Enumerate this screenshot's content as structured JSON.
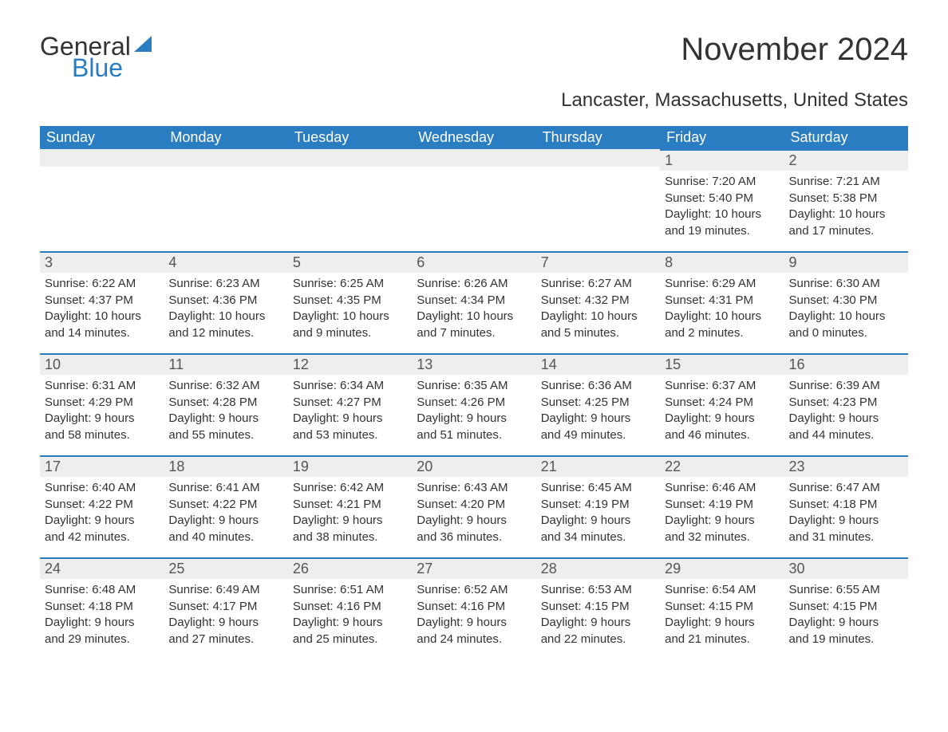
{
  "logo": {
    "text1": "General",
    "text2": "Blue",
    "sail_color": "#2a7dc0"
  },
  "title": "November 2024",
  "subtitle": "Lancaster, Massachusetts, United States",
  "colors": {
    "header_bg": "#2a7dc0",
    "header_fg": "#ffffff",
    "day_border_top": "#2a7dc0",
    "daynum_bg": "#eeeeee",
    "text": "#333333"
  },
  "weekdays": [
    "Sunday",
    "Monday",
    "Tuesday",
    "Wednesday",
    "Thursday",
    "Friday",
    "Saturday"
  ],
  "weeks": [
    [
      null,
      null,
      null,
      null,
      null,
      {
        "n": "1",
        "sunrise": "Sunrise: 7:20 AM",
        "sunset": "Sunset: 5:40 PM",
        "dl1": "Daylight: 10 hours",
        "dl2": "and 19 minutes."
      },
      {
        "n": "2",
        "sunrise": "Sunrise: 7:21 AM",
        "sunset": "Sunset: 5:38 PM",
        "dl1": "Daylight: 10 hours",
        "dl2": "and 17 minutes."
      }
    ],
    [
      {
        "n": "3",
        "sunrise": "Sunrise: 6:22 AM",
        "sunset": "Sunset: 4:37 PM",
        "dl1": "Daylight: 10 hours",
        "dl2": "and 14 minutes."
      },
      {
        "n": "4",
        "sunrise": "Sunrise: 6:23 AM",
        "sunset": "Sunset: 4:36 PM",
        "dl1": "Daylight: 10 hours",
        "dl2": "and 12 minutes."
      },
      {
        "n": "5",
        "sunrise": "Sunrise: 6:25 AM",
        "sunset": "Sunset: 4:35 PM",
        "dl1": "Daylight: 10 hours",
        "dl2": "and 9 minutes."
      },
      {
        "n": "6",
        "sunrise": "Sunrise: 6:26 AM",
        "sunset": "Sunset: 4:34 PM",
        "dl1": "Daylight: 10 hours",
        "dl2": "and 7 minutes."
      },
      {
        "n": "7",
        "sunrise": "Sunrise: 6:27 AM",
        "sunset": "Sunset: 4:32 PM",
        "dl1": "Daylight: 10 hours",
        "dl2": "and 5 minutes."
      },
      {
        "n": "8",
        "sunrise": "Sunrise: 6:29 AM",
        "sunset": "Sunset: 4:31 PM",
        "dl1": "Daylight: 10 hours",
        "dl2": "and 2 minutes."
      },
      {
        "n": "9",
        "sunrise": "Sunrise: 6:30 AM",
        "sunset": "Sunset: 4:30 PM",
        "dl1": "Daylight: 10 hours",
        "dl2": "and 0 minutes."
      }
    ],
    [
      {
        "n": "10",
        "sunrise": "Sunrise: 6:31 AM",
        "sunset": "Sunset: 4:29 PM",
        "dl1": "Daylight: 9 hours",
        "dl2": "and 58 minutes."
      },
      {
        "n": "11",
        "sunrise": "Sunrise: 6:32 AM",
        "sunset": "Sunset: 4:28 PM",
        "dl1": "Daylight: 9 hours",
        "dl2": "and 55 minutes."
      },
      {
        "n": "12",
        "sunrise": "Sunrise: 6:34 AM",
        "sunset": "Sunset: 4:27 PM",
        "dl1": "Daylight: 9 hours",
        "dl2": "and 53 minutes."
      },
      {
        "n": "13",
        "sunrise": "Sunrise: 6:35 AM",
        "sunset": "Sunset: 4:26 PM",
        "dl1": "Daylight: 9 hours",
        "dl2": "and 51 minutes."
      },
      {
        "n": "14",
        "sunrise": "Sunrise: 6:36 AM",
        "sunset": "Sunset: 4:25 PM",
        "dl1": "Daylight: 9 hours",
        "dl2": "and 49 minutes."
      },
      {
        "n": "15",
        "sunrise": "Sunrise: 6:37 AM",
        "sunset": "Sunset: 4:24 PM",
        "dl1": "Daylight: 9 hours",
        "dl2": "and 46 minutes."
      },
      {
        "n": "16",
        "sunrise": "Sunrise: 6:39 AM",
        "sunset": "Sunset: 4:23 PM",
        "dl1": "Daylight: 9 hours",
        "dl2": "and 44 minutes."
      }
    ],
    [
      {
        "n": "17",
        "sunrise": "Sunrise: 6:40 AM",
        "sunset": "Sunset: 4:22 PM",
        "dl1": "Daylight: 9 hours",
        "dl2": "and 42 minutes."
      },
      {
        "n": "18",
        "sunrise": "Sunrise: 6:41 AM",
        "sunset": "Sunset: 4:22 PM",
        "dl1": "Daylight: 9 hours",
        "dl2": "and 40 minutes."
      },
      {
        "n": "19",
        "sunrise": "Sunrise: 6:42 AM",
        "sunset": "Sunset: 4:21 PM",
        "dl1": "Daylight: 9 hours",
        "dl2": "and 38 minutes."
      },
      {
        "n": "20",
        "sunrise": "Sunrise: 6:43 AM",
        "sunset": "Sunset: 4:20 PM",
        "dl1": "Daylight: 9 hours",
        "dl2": "and 36 minutes."
      },
      {
        "n": "21",
        "sunrise": "Sunrise: 6:45 AM",
        "sunset": "Sunset: 4:19 PM",
        "dl1": "Daylight: 9 hours",
        "dl2": "and 34 minutes."
      },
      {
        "n": "22",
        "sunrise": "Sunrise: 6:46 AM",
        "sunset": "Sunset: 4:19 PM",
        "dl1": "Daylight: 9 hours",
        "dl2": "and 32 minutes."
      },
      {
        "n": "23",
        "sunrise": "Sunrise: 6:47 AM",
        "sunset": "Sunset: 4:18 PM",
        "dl1": "Daylight: 9 hours",
        "dl2": "and 31 minutes."
      }
    ],
    [
      {
        "n": "24",
        "sunrise": "Sunrise: 6:48 AM",
        "sunset": "Sunset: 4:18 PM",
        "dl1": "Daylight: 9 hours",
        "dl2": "and 29 minutes."
      },
      {
        "n": "25",
        "sunrise": "Sunrise: 6:49 AM",
        "sunset": "Sunset: 4:17 PM",
        "dl1": "Daylight: 9 hours",
        "dl2": "and 27 minutes."
      },
      {
        "n": "26",
        "sunrise": "Sunrise: 6:51 AM",
        "sunset": "Sunset: 4:16 PM",
        "dl1": "Daylight: 9 hours",
        "dl2": "and 25 minutes."
      },
      {
        "n": "27",
        "sunrise": "Sunrise: 6:52 AM",
        "sunset": "Sunset: 4:16 PM",
        "dl1": "Daylight: 9 hours",
        "dl2": "and 24 minutes."
      },
      {
        "n": "28",
        "sunrise": "Sunrise: 6:53 AM",
        "sunset": "Sunset: 4:15 PM",
        "dl1": "Daylight: 9 hours",
        "dl2": "and 22 minutes."
      },
      {
        "n": "29",
        "sunrise": "Sunrise: 6:54 AM",
        "sunset": "Sunset: 4:15 PM",
        "dl1": "Daylight: 9 hours",
        "dl2": "and 21 minutes."
      },
      {
        "n": "30",
        "sunrise": "Sunrise: 6:55 AM",
        "sunset": "Sunset: 4:15 PM",
        "dl1": "Daylight: 9 hours",
        "dl2": "and 19 minutes."
      }
    ]
  ]
}
